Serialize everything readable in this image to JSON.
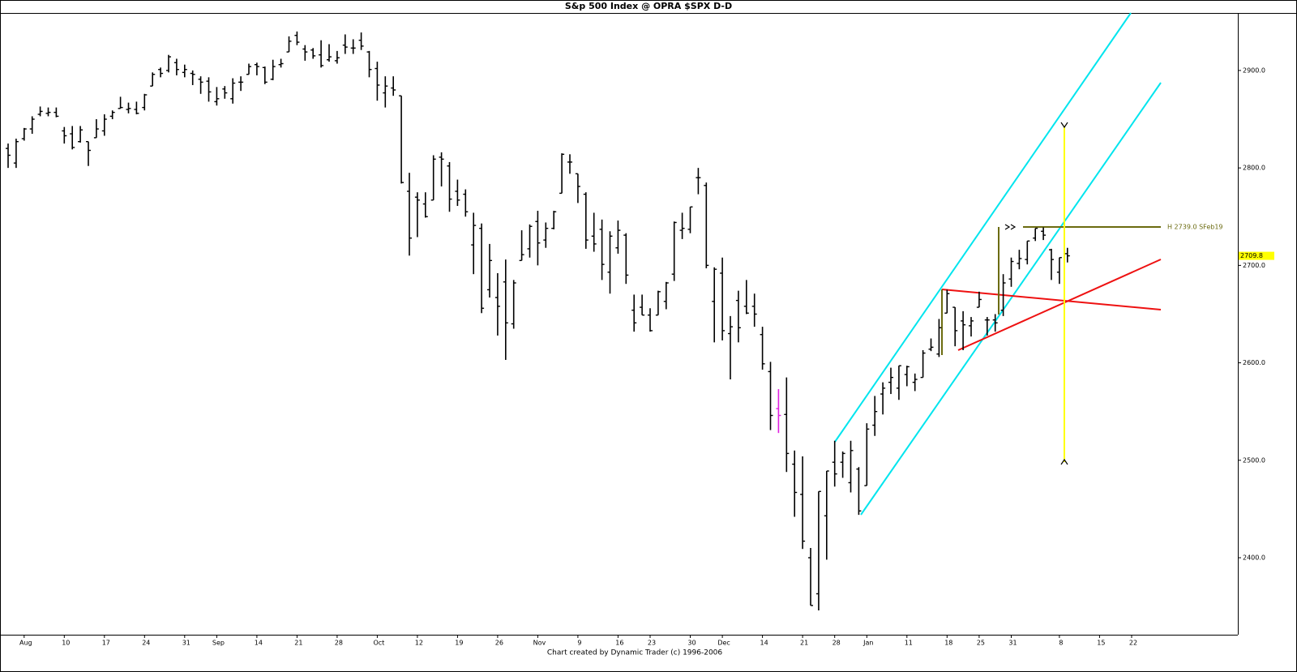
{
  "chart_data": {
    "type": "ohlc",
    "title": "S&p 500 Index @ OPRA $SPX   D-D",
    "footer": "Chart created by Dynamic Trader  (c) 1996-2006",
    "annotation": "H 2739.0 SFeb19",
    "color": "#000000",
    "highlight": {
      "index": 96,
      "color": "#e020e0"
    },
    "ylim": [
      2321,
      2959
    ],
    "yticks": [
      {
        "value": 2400,
        "label": "2400.0"
      },
      {
        "value": 2500,
        "label": "2500.0"
      },
      {
        "value": 2600,
        "label": "2600.0"
      },
      {
        "value": 2700,
        "label": "2700.0"
      },
      {
        "value": 2800,
        "label": "2800.0"
      },
      {
        "value": 2900,
        "label": "2900.0"
      }
    ],
    "categories": [
      null,
      null,
      "Aug",
      null,
      null,
      null,
      null,
      "10",
      null,
      null,
      null,
      null,
      "17",
      null,
      null,
      null,
      null,
      "24",
      null,
      null,
      null,
      null,
      "31",
      null,
      null,
      null,
      "Sep",
      null,
      null,
      null,
      null,
      "14",
      null,
      null,
      null,
      null,
      "21",
      null,
      null,
      null,
      null,
      "28",
      null,
      null,
      null,
      null,
      "Oct",
      null,
      null,
      null,
      null,
      "12",
      null,
      null,
      null,
      null,
      "19",
      null,
      null,
      null,
      null,
      "26",
      null,
      null,
      null,
      null,
      "Nov",
      null,
      null,
      null,
      null,
      "9",
      null,
      null,
      null,
      null,
      "16",
      null,
      null,
      null,
      "23",
      null,
      null,
      null,
      null,
      "30",
      null,
      null,
      null,
      "Dec",
      null,
      null,
      null,
      null,
      "14",
      null,
      null,
      null,
      null,
      "21",
      null,
      null,
      null,
      "28",
      null,
      null,
      null,
      "Jan",
      null,
      null,
      null,
      null,
      "11",
      null,
      null,
      null,
      null,
      "18",
      null,
      null,
      null,
      "25",
      null,
      null,
      null,
      "31",
      null,
      null,
      null,
      null,
      null,
      "8",
      null,
      null,
      null,
      null,
      "15",
      null,
      null,
      null,
      "22",
      null,
      null,
      null
    ],
    "bars": [
      [
        2820,
        2825,
        2800,
        2813
      ],
      [
        2805,
        2830,
        2800,
        2827
      ],
      [
        2830,
        2841,
        2828,
        2840
      ],
      [
        2840,
        2853,
        2835,
        2850
      ],
      [
        2855,
        2863,
        2853,
        2858
      ],
      [
        2856,
        2862,
        2853,
        2857
      ],
      [
        2857,
        2862,
        2852,
        2853
      ],
      [
        2838,
        2842,
        2825,
        2833
      ],
      [
        2835,
        2843,
        2819,
        2821
      ],
      [
        2827,
        2843,
        2826,
        2839
      ],
      [
        2827,
        2827,
        2802,
        2818
      ],
      [
        2831,
        2850,
        2831,
        2840
      ],
      [
        2838,
        2855,
        2833,
        2850
      ],
      [
        2853,
        2859,
        2850,
        2857
      ],
      [
        2861,
        2873,
        2861,
        2862
      ],
      [
        2860,
        2867,
        2856,
        2861
      ],
      [
        2860,
        2868,
        2855,
        2856
      ],
      [
        2862,
        2876,
        2859,
        2875
      ],
      [
        2884,
        2898,
        2884,
        2896
      ],
      [
        2901,
        2903,
        2893,
        2897
      ],
      [
        2900,
        2916,
        2898,
        2914
      ],
      [
        2908,
        2912,
        2895,
        2901
      ],
      [
        2898,
        2906,
        2893,
        2901
      ],
      [
        2897,
        2900,
        2885,
        2896
      ],
      [
        2891,
        2894,
        2876,
        2888
      ],
      [
        2889,
        2893,
        2868,
        2878
      ],
      [
        2868,
        2883,
        2864,
        2871
      ],
      [
        2881,
        2884,
        2871,
        2877
      ],
      [
        2871,
        2892,
        2866,
        2887
      ],
      [
        2888,
        2894,
        2879,
        2888
      ],
      [
        2896,
        2907,
        2896,
        2904
      ],
      [
        2906,
        2908,
        2895,
        2904
      ],
      [
        2903,
        2904,
        2886,
        2888
      ],
      [
        2891,
        2911,
        2890,
        2904
      ],
      [
        2906,
        2912,
        2903,
        2907
      ],
      [
        2919,
        2935,
        2919,
        2930
      ],
      [
        2936,
        2940,
        2926,
        2929
      ],
      [
        2922,
        2926,
        2910,
        2919
      ],
      [
        2921,
        2923,
        2912,
        2915
      ],
      [
        2916,
        2931,
        2903,
        2905
      ],
      [
        2911,
        2927,
        2909,
        2914
      ],
      [
        2910,
        2920,
        2907,
        2913
      ],
      [
        2926,
        2937,
        2917,
        2924
      ],
      [
        2923,
        2932,
        2917,
        2923
      ],
      [
        2931,
        2939,
        2921,
        2925
      ],
      [
        2919,
        2920,
        2893,
        2901
      ],
      [
        2902,
        2909,
        2869,
        2885
      ],
      [
        2877,
        2894,
        2862,
        2884
      ],
      [
        2882,
        2894,
        2874,
        2880
      ],
      [
        2874,
        2874,
        2784,
        2785
      ],
      [
        2776,
        2795,
        2710,
        2728
      ],
      [
        2770,
        2775,
        2729,
        2767
      ],
      [
        2763,
        2775,
        2749,
        2750
      ],
      [
        2767,
        2813,
        2767,
        2809
      ],
      [
        2811,
        2816,
        2781,
        2809
      ],
      [
        2802,
        2806,
        2755,
        2768
      ],
      [
        2776,
        2788,
        2761,
        2767
      ],
      [
        2773,
        2778,
        2750,
        2755
      ],
      [
        2721,
        2754,
        2691,
        2741
      ],
      [
        2738,
        2743,
        2651,
        2656
      ],
      [
        2675,
        2722,
        2667,
        2705
      ],
      [
        2667,
        2692,
        2628,
        2658
      ],
      [
        2683,
        2706,
        2603,
        2641
      ],
      [
        2640,
        2685,
        2635,
        2682
      ],
      [
        2705,
        2736,
        2705,
        2711
      ],
      [
        2717,
        2742,
        2708,
        2740
      ],
      [
        2745,
        2756,
        2700,
        2723
      ],
      [
        2726,
        2744,
        2718,
        2738
      ],
      [
        2738,
        2756,
        2737,
        2755
      ],
      [
        2774,
        2815,
        2774,
        2814
      ],
      [
        2806,
        2814,
        2794,
        2806
      ],
      [
        2794,
        2794,
        2764,
        2781
      ],
      [
        2773,
        2775,
        2717,
        2726
      ],
      [
        2730,
        2754,
        2714,
        2722
      ],
      [
        2737,
        2747,
        2685,
        2701
      ],
      [
        2693,
        2735,
        2671,
        2730
      ],
      [
        2718,
        2746,
        2712,
        2736
      ],
      [
        2731,
        2733,
        2681,
        2690
      ],
      [
        2654,
        2670,
        2632,
        2641
      ],
      [
        2657,
        2670,
        2649,
        2649
      ],
      [
        2649,
        2656,
        2632,
        2633
      ],
      [
        2649,
        2674,
        2649,
        2673
      ],
      [
        2663,
        2683,
        2655,
        2682
      ],
      [
        2691,
        2745,
        2684,
        2744
      ],
      [
        2736,
        2754,
        2727,
        2738
      ],
      [
        2737,
        2760,
        2733,
        2760
      ],
      [
        2790,
        2800,
        2773,
        2790
      ],
      [
        2782,
        2785,
        2697,
        2700
      ],
      [
        2663,
        2698,
        2621,
        2696
      ],
      [
        2692,
        2708,
        2623,
        2633
      ],
      [
        2630,
        2648,
        2583,
        2637
      ],
      [
        2664,
        2674,
        2621,
        2636
      ],
      [
        2658,
        2685,
        2650,
        2651
      ],
      [
        2658,
        2671,
        2637,
        2650
      ],
      [
        2629,
        2637,
        2593,
        2599
      ],
      [
        2591,
        2601,
        2531,
        2546
      ],
      [
        2553,
        2573,
        2528,
        2546
      ],
      [
        2547,
        2585,
        2488,
        2507
      ],
      [
        2496,
        2510,
        2442,
        2467
      ],
      [
        2465,
        2504,
        2409,
        2417
      ],
      [
        2400,
        2410,
        2351,
        2351
      ],
      [
        2363,
        2468,
        2346,
        2468
      ],
      [
        2443,
        2489,
        2398,
        2489
      ],
      [
        2498,
        2520,
        2473,
        2486
      ],
      [
        2498,
        2509,
        2482,
        2507
      ],
      [
        2477,
        2520,
        2467,
        2510
      ],
      [
        2491,
        2493,
        2444,
        2448
      ],
      [
        2474,
        2538,
        2474,
        2532
      ],
      [
        2536,
        2566,
        2525,
        2550
      ],
      [
        2568,
        2580,
        2547,
        2574
      ],
      [
        2580,
        2595,
        2568,
        2585
      ],
      [
        2574,
        2597,
        2562,
        2597
      ],
      [
        2588,
        2597,
        2576,
        2596
      ],
      [
        2580,
        2589,
        2571,
        2583
      ],
      [
        2585,
        2613,
        2585,
        2610
      ],
      [
        2614,
        2625,
        2612,
        2616
      ],
      [
        2609,
        2645,
        2606,
        2636
      ],
      [
        2651,
        2675,
        2651,
        2671
      ],
      [
        2657,
        2657,
        2617,
        2633
      ],
      [
        2643,
        2653,
        2613,
        2639
      ],
      [
        2638,
        2647,
        2627,
        2643
      ],
      [
        2657,
        2673,
        2657,
        2665
      ],
      [
        2644,
        2647,
        2628,
        2644
      ],
      [
        2644,
        2650,
        2632,
        2641
      ],
      [
        2654,
        2691,
        2648,
        2682
      ],
      [
        2686,
        2708,
        2678,
        2704
      ],
      [
        2702,
        2716,
        2696,
        2707
      ],
      [
        2706,
        2725,
        2701,
        2725
      ],
      [
        2728,
        2738,
        2725,
        2738
      ],
      [
        2735,
        2739,
        2726,
        2731
      ],
      [
        2716,
        2717,
        2685,
        2706
      ],
      [
        2693,
        2708,
        2681,
        2708
      ],
      [
        2712,
        2718,
        2703,
        2709.8
      ],
      null,
      null,
      null,
      null,
      null,
      null,
      null,
      null,
      null,
      null,
      null
    ]
  }
}
